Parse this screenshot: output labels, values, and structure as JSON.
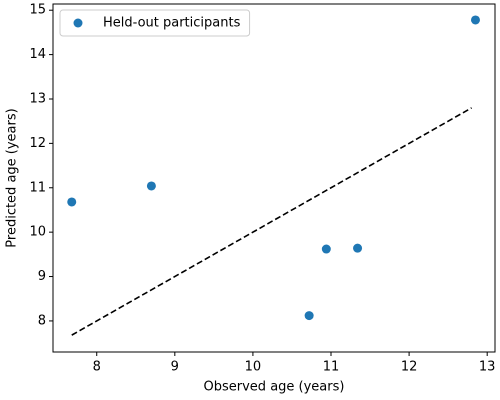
{
  "chart_data": {
    "type": "scatter",
    "xlabel": "Observed age (years)",
    "ylabel": "Predicted age (years)",
    "series": [
      {
        "name": "Held-out participants",
        "color": "#1f77b4",
        "x": [
          7.68,
          8.7,
          10.72,
          10.94,
          11.34,
          12.85
        ],
        "values": [
          10.68,
          11.04,
          8.12,
          9.62,
          9.64,
          14.78
        ]
      }
    ],
    "reference_line": {
      "x": [
        7.68,
        12.8
      ],
      "values": [
        7.68,
        12.8
      ],
      "color": "#000000",
      "dash": true
    },
    "xlim": [
      7.44,
      13.1
    ],
    "xticks": [
      8,
      9,
      10,
      11,
      12,
      13
    ],
    "ylim": [
      7.3,
      15.14
    ],
    "yticks": [
      8,
      9,
      10,
      11,
      12,
      13,
      14,
      15
    ],
    "legend": "upper left",
    "grid": false
  }
}
